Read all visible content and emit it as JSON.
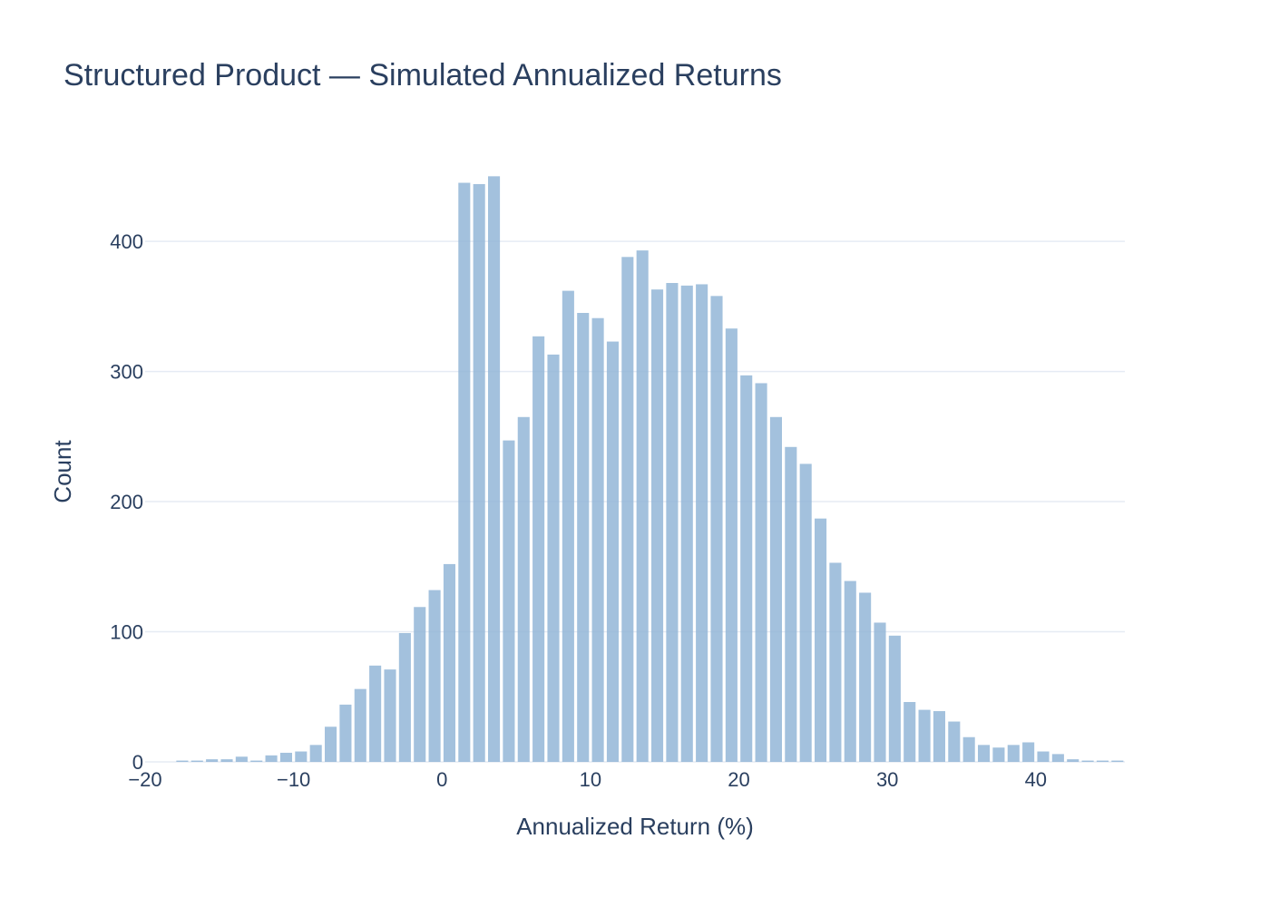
{
  "chart_data": {
    "type": "bar",
    "title": "Structured Product — Simulated Annualized Returns",
    "xlabel": "Annualized Return (%)",
    "ylabel": "Count",
    "xlim": [
      -20,
      46
    ],
    "ylim": [
      0,
      460
    ],
    "x_ticks": [
      -20,
      -10,
      0,
      10,
      20,
      30,
      40
    ],
    "x_tick_labels": [
      "−20",
      "−10",
      "0",
      "10",
      "20",
      "30",
      "40"
    ],
    "y_ticks": [
      0,
      100,
      200,
      300,
      400
    ],
    "y_tick_labels": [
      "0",
      "100",
      "200",
      "300",
      "400"
    ],
    "grid": true,
    "bin_width": 1,
    "bin_start": -20,
    "bars_color": "#8fb3d5",
    "grid_color": "#e6ebf4",
    "counts": [
      0,
      0,
      1,
      1,
      2,
      2,
      4,
      1,
      5,
      7,
      8,
      13,
      27,
      44,
      56,
      74,
      71,
      99,
      119,
      132,
      152,
      445,
      444,
      450,
      247,
      265,
      327,
      313,
      362,
      345,
      341,
      323,
      388,
      393,
      363,
      368,
      366,
      367,
      358,
      333,
      297,
      291,
      265,
      242,
      229,
      187,
      153,
      139,
      130,
      107,
      97,
      46,
      40,
      39,
      31,
      19,
      13,
      11,
      13,
      15,
      8,
      6,
      2,
      1,
      1,
      1
    ]
  }
}
